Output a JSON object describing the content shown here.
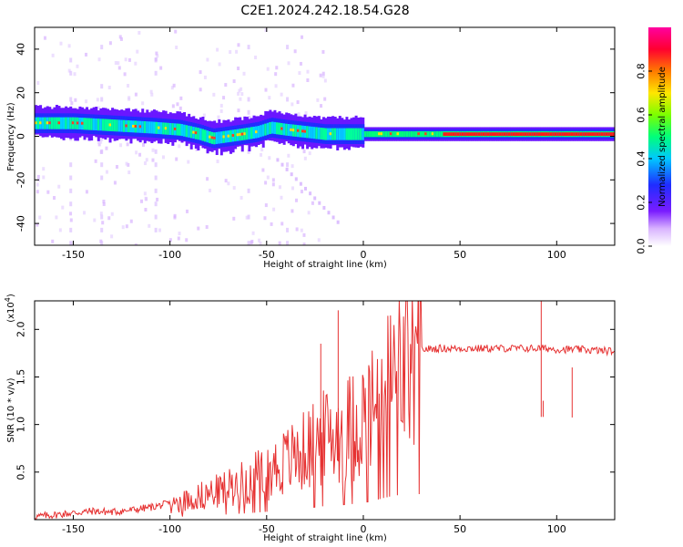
{
  "title": "C2E1.2024.242.18.54.G28",
  "chart_data": [
    {
      "type": "heatmap",
      "xlabel": "Height of straight line (km)",
      "ylabel": "Frequency (Hz)",
      "xlim": [
        -170,
        130
      ],
      "ylim": [
        -50,
        50
      ],
      "xticks": [
        -150,
        -100,
        -50,
        0,
        50,
        100
      ],
      "yticks": [
        -40,
        -20,
        0,
        20,
        40
      ],
      "colorbar": {
        "label": "Normalized spectral amplitude",
        "range": [
          0,
          1
        ],
        "ticks": [
          "0.0",
          "0.2",
          "0.4",
          "0.6",
          "0.8"
        ],
        "colors": [
          "#ffffff",
          "#d9b3ff",
          "#7a1cff",
          "#1f2dff",
          "#00c8ff",
          "#00ff7a",
          "#7cff00",
          "#ffe600",
          "#ff7a00",
          "#ff0030",
          "#ff00a0"
        ]
      },
      "ridge": {
        "x": [
          -170,
          -150,
          -130,
          -110,
          -95,
          -85,
          -78,
          -70,
          -62,
          -55,
          -48,
          -40,
          -30,
          -20,
          -12,
          -5,
          0,
          10,
          20,
          40,
          60,
          80,
          100,
          130
        ],
        "frequency": [
          6,
          6,
          5,
          4,
          3,
          1,
          -1,
          0,
          1,
          2,
          4,
          3,
          2,
          1,
          1,
          1,
          1,
          1,
          1,
          1,
          1,
          1,
          1,
          1
        ]
      }
    },
    {
      "type": "line",
      "xlabel": "Height of straight line (km)",
      "ylabel": "SNR (10 * v/v)",
      "yscale_label": "(x10",
      "yscale_exponent": "4",
      "xlim": [
        -170,
        130
      ],
      "ylim": [
        0,
        2.3
      ],
      "xticks": [
        -150,
        -100,
        -50,
        0,
        50,
        100
      ],
      "yticks": [
        "0.5",
        "1.0",
        "1.5",
        "2.0"
      ],
      "line_color": "#e63232",
      "series": [
        {
          "x": [
            -170,
            -160,
            -150,
            -140,
            -130,
            -120,
            -110,
            -100,
            -90,
            -80,
            -70,
            -60,
            -50,
            -40,
            -30,
            -20,
            -15,
            -10,
            -5,
            0,
            5,
            10,
            15,
            20,
            25,
            30,
            40,
            50,
            60,
            70,
            80,
            90,
            93,
            95,
            100,
            110,
            120,
            130
          ],
          "values": [
            0.03,
            0.05,
            0.07,
            0.09,
            0.08,
            0.1,
            0.13,
            0.17,
            0.24,
            0.3,
            0.37,
            0.45,
            0.55,
            0.68,
            0.8,
            0.95,
            1.0,
            1.05,
            1.1,
            1.2,
            1.3,
            1.5,
            1.65,
            1.76,
            1.78,
            1.79,
            1.8,
            1.8,
            1.8,
            1.8,
            1.8,
            1.8,
            1.8,
            1.8,
            1.79,
            1.79,
            1.78,
            1.77
          ]
        }
      ],
      "spikes": [
        {
          "x": -13,
          "value": 2.2
        },
        {
          "x": -22,
          "value": 1.85
        },
        {
          "x": 92,
          "value": 2.3
        },
        {
          "x": 93,
          "value": 1.25
        },
        {
          "x": 108,
          "value": 1.6
        }
      ]
    }
  ]
}
